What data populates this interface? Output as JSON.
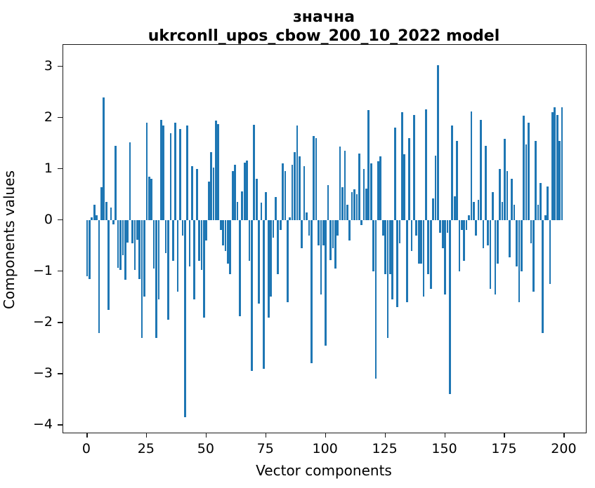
{
  "chart_data": {
    "type": "bar",
    "title_line1": "значна",
    "title_line2": "ukrconll_upos_cbow_200_10_2022 model",
    "xlabel": "Vector components",
    "ylabel": "Components values",
    "bar_color": "#1f77b4",
    "axis_color": "#1a1a1a",
    "x_ticks": [
      0,
      25,
      50,
      75,
      100,
      125,
      150,
      175,
      200
    ],
    "y_ticks": [
      3,
      2,
      1,
      0,
      -1,
      -2,
      -3,
      -4
    ],
    "xlim": [
      -10,
      209
    ],
    "ylim": [
      -4.15,
      3.42
    ],
    "grid": false,
    "legend": null,
    "bar_width_data": 0.8,
    "x": "indices 0..199",
    "values": [
      -1.1,
      -1.15,
      0.05,
      0.3,
      0.1,
      -2.2,
      0.64,
      2.4,
      0.35,
      -1.75,
      0.25,
      -0.08,
      1.45,
      -0.94,
      -0.98,
      -0.68,
      -1.16,
      -0.44,
      1.52,
      -0.46,
      -0.98,
      -0.38,
      -1.15,
      -2.3,
      -1.5,
      1.9,
      0.85,
      0.8,
      -0.95,
      -2.3,
      -1.55,
      1.95,
      1.85,
      -0.65,
      -1.95,
      1.7,
      -0.8,
      1.9,
      -1.4,
      1.78,
      -0.3,
      -3.85,
      1.85,
      -0.9,
      1.05,
      -1.55,
      1.0,
      -0.8,
      -0.98,
      -1.9,
      -0.4,
      0.75,
      1.32,
      1.03,
      1.94,
      1.87,
      -0.2,
      -0.5,
      -0.6,
      -0.85,
      -1.05,
      0.95,
      1.08,
      0.35,
      -1.88,
      0.56,
      1.12,
      1.16,
      -0.8,
      -2.95,
      1.86,
      0.8,
      -1.63,
      0.34,
      -2.9,
      0.55,
      -1.9,
      -1.5,
      -0.35,
      0.45,
      -1.05,
      -0.2,
      1.1,
      0.95,
      -1.6,
      0.05,
      1.08,
      1.33,
      1.85,
      1.25,
      -0.55,
      1.05,
      0.15,
      -0.3,
      -2.8,
      1.64,
      1.6,
      -0.5,
      -1.45,
      -0.5,
      -2.45,
      0.68,
      -0.78,
      -0.55,
      -0.95,
      -0.3,
      1.44,
      0.64,
      1.35,
      0.3,
      -0.4,
      0.55,
      0.6,
      0.5,
      1.3,
      -0.1,
      1.0,
      0.62,
      2.15,
      1.1,
      -1.0,
      -3.1,
      1.15,
      1.25,
      -0.3,
      -1.05,
      -2.3,
      -1.05,
      -1.55,
      1.8,
      -1.7,
      -0.45,
      2.1,
      1.28,
      -1.6,
      1.6,
      -0.6,
      2.05,
      -0.3,
      -0.85,
      -0.85,
      -1.5,
      2.16,
      -1.05,
      -1.35,
      0.42,
      1.26,
      3.02,
      -0.25,
      -0.55,
      -1.45,
      -0.25,
      -3.4,
      1.85,
      0.46,
      1.55,
      -1.0,
      -0.2,
      -0.8,
      -0.2,
      0.1,
      2.12,
      0.35,
      -0.3,
      0.4,
      1.95,
      -0.55,
      1.45,
      -0.5,
      -1.35,
      0.55,
      -1.45,
      -0.85,
      1.0,
      0.35,
      1.58,
      0.95,
      -0.73,
      0.8,
      0.3,
      -0.9,
      -1.6,
      -1.0,
      2.04,
      1.48,
      1.9,
      -0.45,
      -1.4,
      1.55,
      0.3,
      0.72,
      -2.2,
      0.1,
      0.65,
      -1.25,
      2.1,
      2.2,
      2.05,
      1.55,
      2.2
    ]
  }
}
